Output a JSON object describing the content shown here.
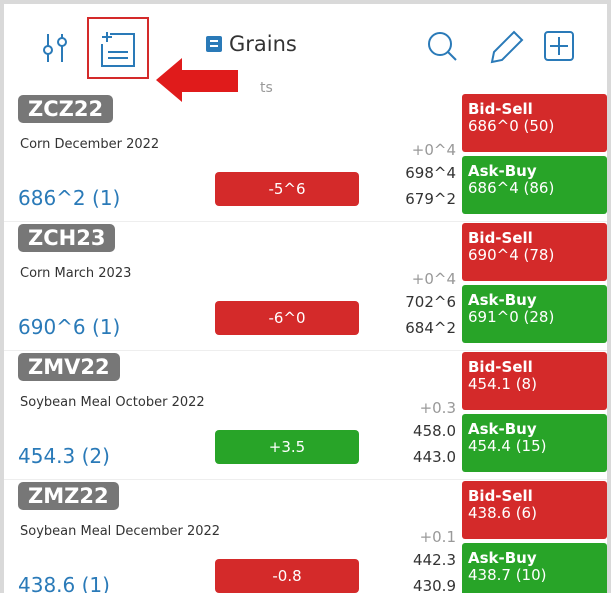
{
  "header": {
    "title": "Grains",
    "subtitle": "ts"
  },
  "rows": [
    {
      "symbol": "ZCZ22",
      "description": "Corn  December 2022",
      "last": "686^2 (1)",
      "change": "-5^6",
      "change_color": "#d42a2a",
      "net": "+0^4",
      "high": "698^4",
      "low": "679^2",
      "bid_label": "Bid-Sell",
      "bid": "686^0 (50)",
      "ask_label": "Ask-Buy",
      "ask": "686^4 (86)"
    },
    {
      "symbol": "ZCH23",
      "description": "Corn  March 2023",
      "last": "690^6 (1)",
      "change": "-6^0",
      "change_color": "#d42a2a",
      "net": "+0^4",
      "high": "702^6",
      "low": "684^2",
      "bid_label": "Bid-Sell",
      "bid": "690^4 (78)",
      "ask_label": "Ask-Buy",
      "ask": "691^0 (28)"
    },
    {
      "symbol": "ZMV22",
      "description": "Soybean Meal  October 2022",
      "last": "454.3 (2)",
      "change": "+3.5",
      "change_color": "#28a428",
      "net": "+0.3",
      "high": "458.0",
      "low": "443.0",
      "bid_label": "Bid-Sell",
      "bid": "454.1 (8)",
      "ask_label": "Ask-Buy",
      "ask": "454.4 (15)"
    },
    {
      "symbol": "ZMZ22",
      "description": "Soybean Meal  December 2022",
      "last": "438.6 (1)",
      "change": "-0.8",
      "change_color": "#d42a2a",
      "net": "+0.1",
      "high": "442.3",
      "low": "430.9",
      "bid_label": "Bid-Sell",
      "bid": "438.6 (6)",
      "ask_label": "Ask-Buy",
      "ask": "438.7 (10)"
    }
  ]
}
